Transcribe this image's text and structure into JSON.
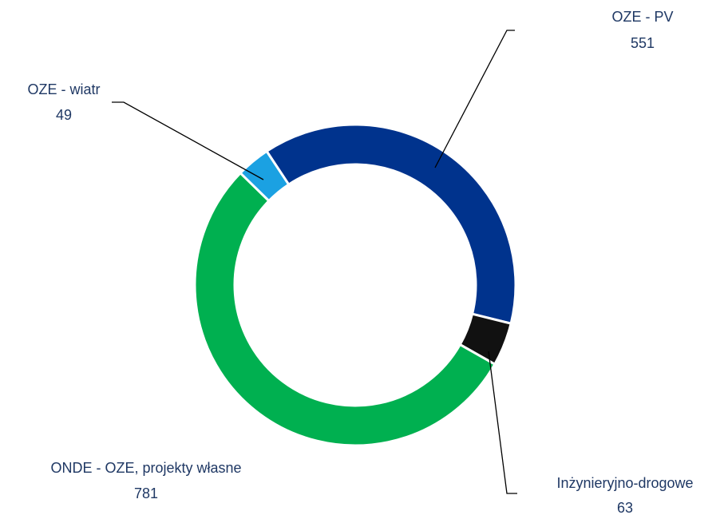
{
  "chart_data": {
    "type": "donut",
    "categories": [
      "OZE - PV",
      "Inżynieryjno-drogowe",
      "ONDE - OZE, projekty własne",
      "OZE - wiatr"
    ],
    "values": [
      551,
      63,
      781,
      49
    ],
    "colors": [
      "#00338d",
      "#111111",
      "#00b050",
      "#1ba1e2"
    ]
  }
}
